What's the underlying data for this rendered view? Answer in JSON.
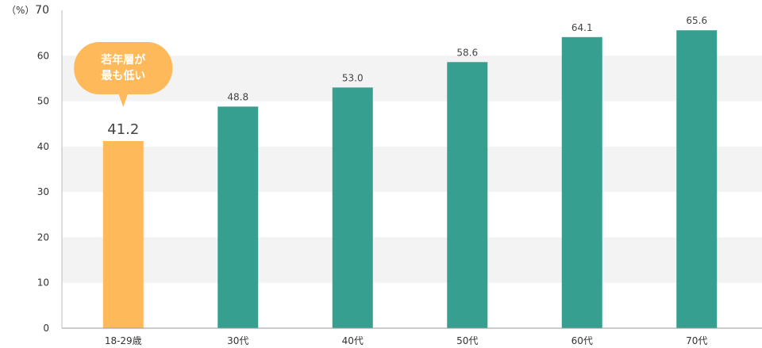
{
  "chart_data": {
    "type": "bar",
    "unit_label": "（%）",
    "categories": [
      "18-29歳",
      "30代",
      "40代",
      "50代",
      "60代",
      "70代"
    ],
    "values": [
      41.2,
      48.8,
      53.0,
      58.6,
      64.1,
      65.6
    ],
    "value_labels": [
      "41.2",
      "48.8",
      "53.0",
      "58.6",
      "64.1",
      "65.6"
    ],
    "ylim": [
      0,
      70
    ],
    "yticks": [
      0,
      10,
      20,
      30,
      40,
      50,
      60,
      70
    ],
    "highlight_index": 0,
    "colors": {
      "bar": "#379f8f",
      "highlight": "#fdb95a",
      "band": "#f3f3f3"
    },
    "annotation": {
      "target_index": 0,
      "lines": [
        "若年層が",
        "最も低い"
      ]
    }
  }
}
